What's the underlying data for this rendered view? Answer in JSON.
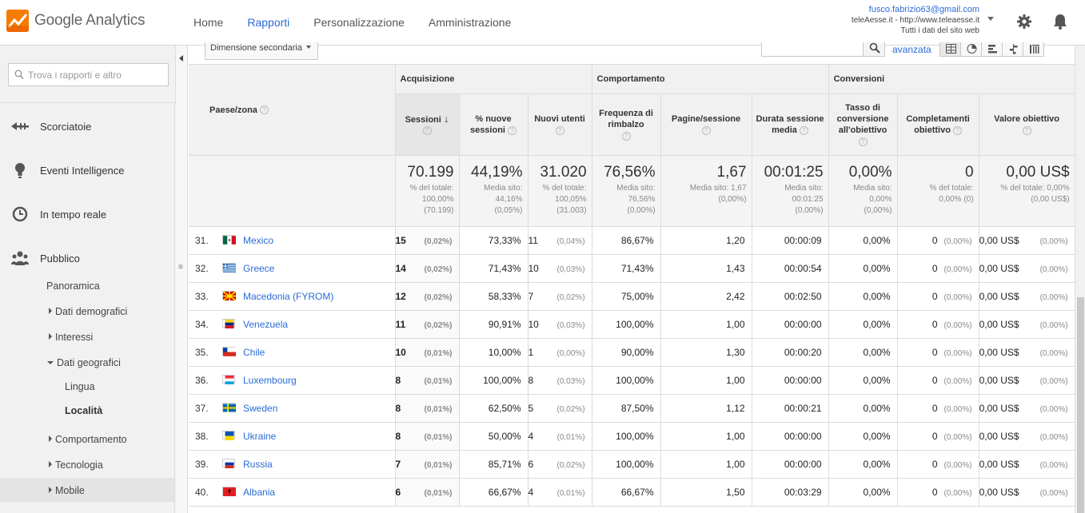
{
  "app": {
    "logo_text": "Google Analytics"
  },
  "nav": [
    {
      "label": "Home",
      "active": false
    },
    {
      "label": "Rapporti",
      "active": true
    },
    {
      "label": "Personalizzazione",
      "active": false
    },
    {
      "label": "Amministrazione",
      "active": false
    }
  ],
  "account": {
    "email": "fusco.fabrizio63@gmail.com",
    "property": "teleAesse.it - http://www.teleaesse.it",
    "view": "Tutti i dati del sito web"
  },
  "sidebar": {
    "search_placeholder": "Trova i rapporti e altro",
    "items": [
      {
        "label": "Scorciatoie",
        "icon": "shortcut-icon"
      },
      {
        "label": "Eventi Intelligence",
        "icon": "lightbulb-icon"
      },
      {
        "label": "In tempo reale",
        "icon": "clock-icon"
      },
      {
        "label": "Pubblico",
        "icon": "people-icon"
      }
    ],
    "sub": {
      "panoramica": "Panoramica",
      "demografici": "Dati demografici",
      "interessi": "Interessi",
      "geografici": "Dati geografici",
      "lingua": "Lingua",
      "localita": "Località",
      "comportamento": "Comportamento",
      "tecnologia": "Tecnologia",
      "mobile": "Mobile"
    }
  },
  "toolbar": {
    "secondary_dimension": "Dimensione secondaria",
    "advanced": "avanzata"
  },
  "table": {
    "groups": {
      "acquisizione": "Acquisizione",
      "comportamento": "Comportamento",
      "conversioni": "Conversioni"
    },
    "headers": {
      "dim": "Paese/zona",
      "sessioni": "Sessioni",
      "nuove_sessioni": "% nuove sessioni",
      "nuovi_utenti": "Nuovi utenti",
      "rimbalzo": "Frequenza di rimbalzo",
      "pagine": "Pagine/sessione",
      "durata": "Durata sessione media",
      "tasso": "Tasso di conversione all'obiettivo",
      "completamenti": "Completamenti obiettivo",
      "valore": "Valore obiettivo"
    },
    "totals": {
      "sessioni": {
        "value": "70.199",
        "sub1": "% del totale:",
        "sub2": "100,00%",
        "sub3": "(70.199)"
      },
      "nuove_sessioni": {
        "value": "44,19%",
        "sub1": "Media sito:",
        "sub2": "44,16%",
        "sub3": "(0,05%)"
      },
      "nuovi_utenti": {
        "value": "31.020",
        "sub1": "% del totale:",
        "sub2": "100,05%",
        "sub3": "(31.003)"
      },
      "rimbalzo": {
        "value": "76,56%",
        "sub1": "Media sito:",
        "sub2": "76,56%",
        "sub3": "(0,00%)"
      },
      "pagine": {
        "value": "1,67",
        "sub1": "Media sito: 1,67",
        "sub2": "(0,00%)",
        "sub3": ""
      },
      "durata": {
        "value": "00:01:25",
        "sub1": "Media sito:",
        "sub2": "00:01:25",
        "sub3": "(0,00%)"
      },
      "tasso": {
        "value": "0,00%",
        "sub1": "Media sito:",
        "sub2": "0,00%",
        "sub3": "(0,00%)"
      },
      "completamenti": {
        "value": "0",
        "sub1": "% del totale:",
        "sub2": "0,00% (0)",
        "sub3": ""
      },
      "valore": {
        "value": "0,00 US$",
        "sub1": "% del totale: 0,00%",
        "sub2": "(0,00 US$)",
        "sub3": ""
      }
    },
    "rows": [
      {
        "idx": "31.",
        "flag": "mexico",
        "country": "Mexico",
        "sessioni": "15",
        "sess_pct": "(0,02%)",
        "nuove": "73,33%",
        "utenti": "11",
        "utenti_pct": "(0,04%)",
        "rimbalzo": "86,67%",
        "pagine": "1,20",
        "durata": "00:00:09",
        "tasso": "0,00%",
        "compl": "0",
        "compl_pct": "(0,00%)",
        "valore": "0,00 US$",
        "valore_pct": "(0,00%)"
      },
      {
        "idx": "32.",
        "flag": "greece",
        "country": "Greece",
        "sessioni": "14",
        "sess_pct": "(0,02%)",
        "nuove": "71,43%",
        "utenti": "10",
        "utenti_pct": "(0,03%)",
        "rimbalzo": "71,43%",
        "pagine": "1,43",
        "durata": "00:00:54",
        "tasso": "0,00%",
        "compl": "0",
        "compl_pct": "(0,00%)",
        "valore": "0,00 US$",
        "valore_pct": "(0,00%)"
      },
      {
        "idx": "33.",
        "flag": "macedonia",
        "country": "Macedonia (FYROM)",
        "sessioni": "12",
        "sess_pct": "(0,02%)",
        "nuove": "58,33%",
        "utenti": "7",
        "utenti_pct": "(0,02%)",
        "rimbalzo": "75,00%",
        "pagine": "2,42",
        "durata": "00:02:50",
        "tasso": "0,00%",
        "compl": "0",
        "compl_pct": "(0,00%)",
        "valore": "0,00 US$",
        "valore_pct": "(0,00%)"
      },
      {
        "idx": "34.",
        "flag": "venezuela",
        "country": "Venezuela",
        "sessioni": "11",
        "sess_pct": "(0,02%)",
        "nuove": "90,91%",
        "utenti": "10",
        "utenti_pct": "(0,03%)",
        "rimbalzo": "100,00%",
        "pagine": "1,00",
        "durata": "00:00:00",
        "tasso": "0,00%",
        "compl": "0",
        "compl_pct": "(0,00%)",
        "valore": "0,00 US$",
        "valore_pct": "(0,00%)"
      },
      {
        "idx": "35.",
        "flag": "chile",
        "country": "Chile",
        "sessioni": "10",
        "sess_pct": "(0,01%)",
        "nuove": "10,00%",
        "utenti": "1",
        "utenti_pct": "(0,00%)",
        "rimbalzo": "90,00%",
        "pagine": "1,30",
        "durata": "00:00:20",
        "tasso": "0,00%",
        "compl": "0",
        "compl_pct": "(0,00%)",
        "valore": "0,00 US$",
        "valore_pct": "(0,00%)"
      },
      {
        "idx": "36.",
        "flag": "luxembourg",
        "country": "Luxembourg",
        "sessioni": "8",
        "sess_pct": "(0,01%)",
        "nuove": "100,00%",
        "utenti": "8",
        "utenti_pct": "(0,03%)",
        "rimbalzo": "100,00%",
        "pagine": "1,00",
        "durata": "00:00:00",
        "tasso": "0,00%",
        "compl": "0",
        "compl_pct": "(0,00%)",
        "valore": "0,00 US$",
        "valore_pct": "(0,00%)"
      },
      {
        "idx": "37.",
        "flag": "sweden",
        "country": "Sweden",
        "sessioni": "8",
        "sess_pct": "(0,01%)",
        "nuove": "62,50%",
        "utenti": "5",
        "utenti_pct": "(0,02%)",
        "rimbalzo": "87,50%",
        "pagine": "1,12",
        "durata": "00:00:21",
        "tasso": "0,00%",
        "compl": "0",
        "compl_pct": "(0,00%)",
        "valore": "0,00 US$",
        "valore_pct": "(0,00%)"
      },
      {
        "idx": "38.",
        "flag": "ukraine",
        "country": "Ukraine",
        "sessioni": "8",
        "sess_pct": "(0,01%)",
        "nuove": "50,00%",
        "utenti": "4",
        "utenti_pct": "(0,01%)",
        "rimbalzo": "100,00%",
        "pagine": "1,00",
        "durata": "00:00:00",
        "tasso": "0,00%",
        "compl": "0",
        "compl_pct": "(0,00%)",
        "valore": "0,00 US$",
        "valore_pct": "(0,00%)"
      },
      {
        "idx": "39.",
        "flag": "russia",
        "country": "Russia",
        "sessioni": "7",
        "sess_pct": "(0,01%)",
        "nuove": "85,71%",
        "utenti": "6",
        "utenti_pct": "(0,02%)",
        "rimbalzo": "100,00%",
        "pagine": "1,00",
        "durata": "00:00:00",
        "tasso": "0,00%",
        "compl": "0",
        "compl_pct": "(0,00%)",
        "valore": "0,00 US$",
        "valore_pct": "(0,00%)"
      },
      {
        "idx": "40.",
        "flag": "albania",
        "country": "Albania",
        "sessioni": "6",
        "sess_pct": "(0,01%)",
        "nuove": "66,67%",
        "utenti": "4",
        "utenti_pct": "(0,01%)",
        "rimbalzo": "66,67%",
        "pagine": "1,50",
        "durata": "00:03:29",
        "tasso": "0,00%",
        "compl": "0",
        "compl_pct": "(0,00%)",
        "valore": "0,00 US$",
        "valore_pct": "(0,00%)"
      }
    ]
  },
  "colors": {
    "accent": "#2a6bd6",
    "logo_orange": "#f57c00"
  }
}
